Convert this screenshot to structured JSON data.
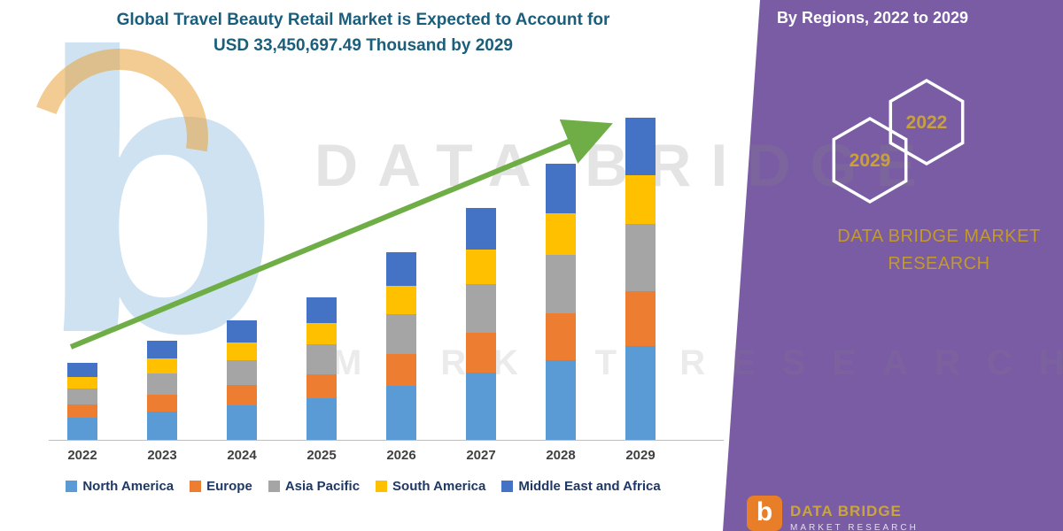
{
  "header": {
    "title_line1": "Global Travel Beauty Retail Market is Expected to Account for",
    "title_line2": "USD 33,450,697.49 Thousand by 2029",
    "title_color": "#1A5E7C"
  },
  "side_panel": {
    "heading": "By Regions, 2022 to 2029",
    "hexagons": {
      "back_year": "2022",
      "front_year": "2029"
    },
    "brand_line1": "DATA BRIDGE MARKET",
    "brand_line2": "RESEARCH",
    "panel_color": "#7A5CA5",
    "accent_gold": "#C8A13C"
  },
  "watermark": {
    "letter": "b",
    "line1": "DATA BRIDGE",
    "line2": "MARKET RESEARCH"
  },
  "footer_brand": {
    "logo_letter": "b",
    "name": "DATA BRIDGE",
    "subtitle": "MARKET RESEARCH"
  },
  "chart_data": {
    "type": "bar",
    "stacked": true,
    "title": "Global Travel Beauty Retail Market by Regions, 2022 to 2029",
    "categories": [
      "2022",
      "2023",
      "2024",
      "2025",
      "2026",
      "2027",
      "2028",
      "2029"
    ],
    "series": [
      {
        "name": "North America",
        "color": "#5B9BD5",
        "values": [
          25,
          32,
          39,
          47,
          61,
          76,
          90,
          106
        ]
      },
      {
        "name": "Europe",
        "color": "#ED7D31",
        "values": [
          15,
          19,
          23,
          27,
          36,
          45,
          53,
          62
        ]
      },
      {
        "name": "Asia Pacific",
        "color": "#A5A5A5",
        "values": [
          18,
          24,
          28,
          34,
          45,
          55,
          66,
          76
        ]
      },
      {
        "name": "South America",
        "color": "#FFC000",
        "values": [
          13,
          17,
          20,
          24,
          32,
          39,
          47,
          55
        ]
      },
      {
        "name": "Middle East and Africa",
        "color": "#4472C4",
        "values": [
          16,
          20,
          25,
          29,
          38,
          47,
          56,
          65
        ]
      }
    ],
    "value_scale": "relative height, y-axis unlabeled",
    "xlabel": "",
    "ylabel": "",
    "grid": false,
    "legend_position": "bottom",
    "trend_arrow": true,
    "trend_arrow_color": "#6FAE46"
  }
}
